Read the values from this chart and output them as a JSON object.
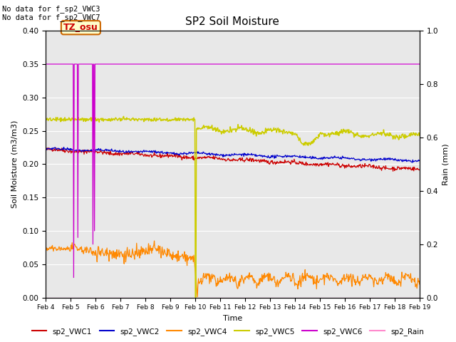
{
  "title": "SP2 Soil Moisture",
  "xlabel": "Time",
  "ylabel_left": "Soil Moisture (m3/m3)",
  "ylabel_right": "Rain (mm)",
  "annotations": [
    "No data for f_sp2_VWC3",
    "No data for f_sp2_VWC7"
  ],
  "timezone_label": "TZ_osu",
  "ylim_left": [
    0.0,
    0.4
  ],
  "ylim_right": [
    0.0,
    1.0
  ],
  "xtick_labels": [
    "Feb 4",
    "Feb 5",
    "Feb 6",
    "Feb 7",
    "Feb 8",
    "Feb 9",
    "Feb 10",
    "Feb 11",
    "Feb 12",
    "Feb 13",
    "Feb 14",
    "Feb 15",
    "Feb 16",
    "Feb 17",
    "Feb 18",
    "Feb 19"
  ],
  "background_color": "#e8e8e8",
  "title_fontsize": 11
}
